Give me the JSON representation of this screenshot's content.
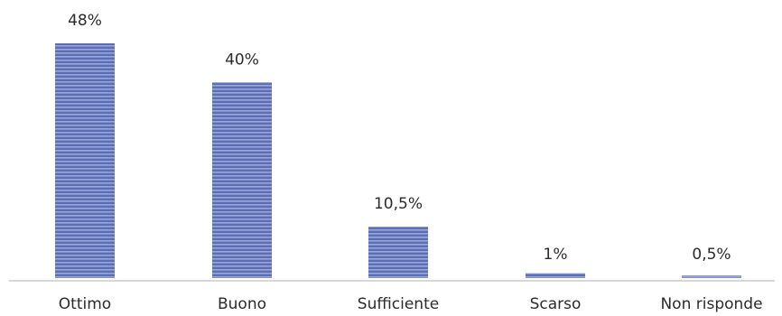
{
  "chart_data": {
    "type": "bar",
    "categories": [
      "Ottimo",
      "Buono",
      "Sufficiente",
      "Scarso",
      "Non risponde"
    ],
    "values": [
      48,
      40,
      10.5,
      1,
      0.5
    ],
    "data_labels": [
      "48%",
      "40%",
      "10,5%",
      "1%",
      "0,5%"
    ],
    "title": "",
    "xlabel": "",
    "ylabel": "",
    "ylim": [
      0,
      50
    ],
    "grid": false,
    "legend": "none",
    "bar_color": "#5b6fb8",
    "bar_stripe_color": "#9ba6d6"
  }
}
